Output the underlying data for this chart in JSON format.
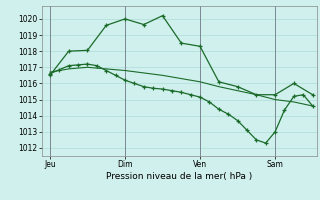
{
  "xlabel": "Pression niveau de la mer( hPa )",
  "background_color": "#cff0ec",
  "grid_color": "#aeddd8",
  "line_color": "#1a6b2a",
  "vline_color": "#666677",
  "ylim": [
    1011.5,
    1020.8
  ],
  "yticks": [
    1012,
    1013,
    1014,
    1015,
    1016,
    1017,
    1018,
    1019,
    1020
  ],
  "day_labels": [
    "Jeu",
    "Dim",
    "Ven",
    "Sam"
  ],
  "day_positions": [
    0,
    72,
    144,
    216
  ],
  "xlim": [
    -8,
    256
  ],
  "series1_x": [
    0,
    18,
    36,
    54,
    72,
    90,
    108,
    126,
    144,
    162,
    180,
    198,
    216,
    234,
    252
  ],
  "series1_y": [
    1016.5,
    1018.0,
    1018.05,
    1019.6,
    1020.0,
    1019.65,
    1020.2,
    1018.5,
    1018.3,
    1016.1,
    1015.8,
    1015.3,
    1015.3,
    1016.0,
    1015.3
  ],
  "series2_x": [
    0,
    18,
    36,
    54,
    72,
    90,
    108,
    126,
    144,
    162,
    180,
    198,
    216,
    234,
    252
  ],
  "series2_y": [
    1016.7,
    1016.9,
    1017.0,
    1016.9,
    1016.8,
    1016.65,
    1016.5,
    1016.3,
    1016.1,
    1015.8,
    1015.55,
    1015.3,
    1015.0,
    1014.85,
    1014.6
  ],
  "series3_x": [
    0,
    9,
    18,
    27,
    36,
    45,
    54,
    63,
    72,
    81,
    90,
    99,
    108,
    117,
    126,
    135,
    144,
    153,
    162,
    171,
    180,
    189,
    198,
    207,
    216,
    225,
    234,
    243,
    252
  ],
  "series3_y": [
    1016.6,
    1016.85,
    1017.1,
    1017.15,
    1017.2,
    1017.1,
    1016.8,
    1016.5,
    1016.2,
    1016.0,
    1015.8,
    1015.7,
    1015.65,
    1015.55,
    1015.45,
    1015.3,
    1015.15,
    1014.85,
    1014.4,
    1014.1,
    1013.7,
    1013.1,
    1012.5,
    1012.3,
    1013.0,
    1014.35,
    1015.2,
    1015.3,
    1014.6
  ]
}
